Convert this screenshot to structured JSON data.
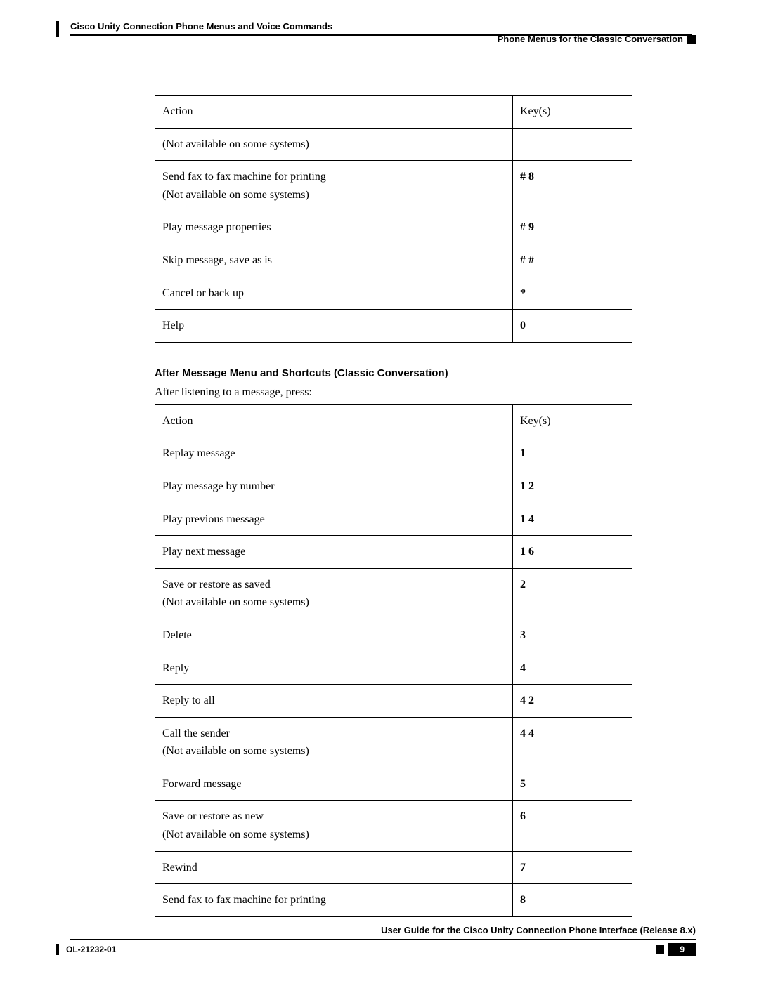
{
  "header": {
    "left": "Cisco Unity Connection Phone Menus and Voice Commands",
    "right": "Phone Menus for the Classic Conversation"
  },
  "table1": {
    "columns": [
      "Action",
      "Key(s)"
    ],
    "rows": [
      {
        "action": "(Not available on some systems)",
        "keys": "",
        "bold": false
      },
      {
        "action": "Send fax to fax machine for printing",
        "note": "(Not available on some systems)",
        "keys": "# 8",
        "bold": true
      },
      {
        "action": "Play message properties",
        "keys": "# 9",
        "bold": true
      },
      {
        "action": "Skip message, save as is",
        "keys": "# #",
        "bold": true
      },
      {
        "action": "Cancel or back up",
        "keys": "*",
        "bold": true
      },
      {
        "action": "Help",
        "keys": "0",
        "bold": true
      }
    ]
  },
  "section": {
    "heading": "After Message Menu and Shortcuts (Classic Conversation)",
    "intro": "After listening to a message, press:"
  },
  "table2": {
    "columns": [
      "Action",
      "Key(s)"
    ],
    "rows": [
      {
        "action": "Replay message",
        "keys": "1",
        "bold": true
      },
      {
        "action": "Play message by number",
        "keys": "1 2",
        "bold": true
      },
      {
        "action": "Play previous message",
        "keys": "1 4",
        "bold": true
      },
      {
        "action": "Play next message",
        "keys": "1 6",
        "bold": true
      },
      {
        "action": "Save or restore as saved",
        "note": "(Not available on some systems)",
        "keys": "2",
        "bold": true
      },
      {
        "action": "Delete",
        "keys": "3",
        "bold": true
      },
      {
        "action": "Reply",
        "keys": "4",
        "bold": true
      },
      {
        "action": "Reply to all",
        "keys": "4 2",
        "bold": true
      },
      {
        "action": "Call the sender",
        "note": "(Not available on some systems)",
        "keys": "4 4",
        "bold": true
      },
      {
        "action": "Forward message",
        "keys": "5",
        "bold": true
      },
      {
        "action": "Save or restore as new",
        "note": "(Not available on some systems)",
        "keys": "6",
        "bold": true
      },
      {
        "action": "Rewind",
        "keys": "7",
        "bold": true
      },
      {
        "action": "Send fax to fax machine for printing",
        "keys": "8",
        "bold": true
      }
    ]
  },
  "footer": {
    "title": "User Guide for the Cisco Unity Connection Phone Interface (Release 8.x)",
    "doc_id": "OL-21232-01",
    "page": "9"
  }
}
